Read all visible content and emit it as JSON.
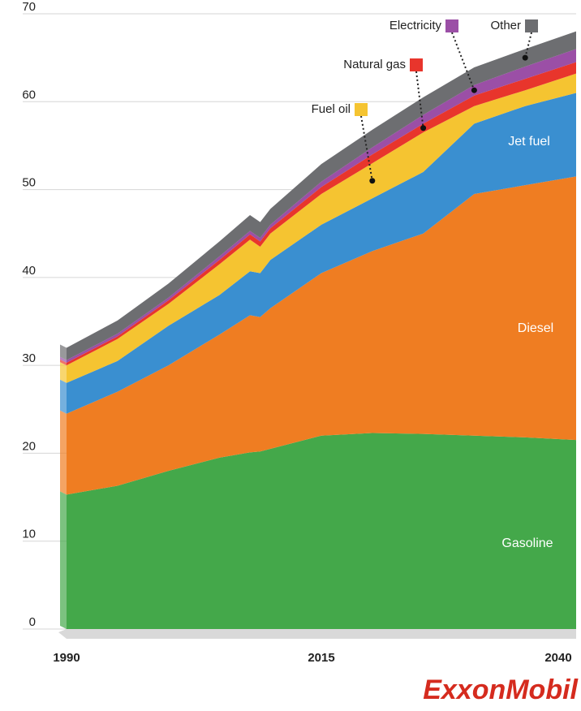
{
  "chart_data": {
    "type": "stacked_area",
    "x": [
      1990,
      1995,
      2000,
      2005,
      2008,
      2009,
      2010,
      2015,
      2020,
      2025,
      2030,
      2035,
      2040
    ],
    "xlim": [
      1990,
      2040
    ],
    "xticks": [
      1990,
      2015,
      2040
    ],
    "ylim": [
      0,
      70
    ],
    "yticks": [
      0,
      10,
      20,
      30,
      40,
      50,
      60,
      70
    ],
    "grid": true,
    "series": [
      {
        "name": "Gasoline",
        "color": "#44a84a",
        "values": [
          15.3,
          16.3,
          18.0,
          19.5,
          20.1,
          20.2,
          20.5,
          22.0,
          22.3,
          22.2,
          22.0,
          21.8,
          21.5
        ]
      },
      {
        "name": "Diesel",
        "color": "#ef7d22",
        "values": [
          9.2,
          10.7,
          12.0,
          14.0,
          15.6,
          15.3,
          16.0,
          18.5,
          20.7,
          22.8,
          27.5,
          28.7,
          30.0
        ]
      },
      {
        "name": "Jet fuel",
        "color": "#3a8fd0",
        "values": [
          3.5,
          3.5,
          4.5,
          4.5,
          5.0,
          5.0,
          5.5,
          5.5,
          6.0,
          7.0,
          8.0,
          9.0,
          9.5
        ]
      },
      {
        "name": "Fuel oil",
        "color": "#f5c431",
        "values": [
          2.0,
          2.5,
          2.5,
          3.5,
          3.6,
          3.0,
          3.0,
          3.5,
          4.0,
          4.5,
          2.0,
          1.8,
          2.2
        ]
      },
      {
        "name": "Natural gas",
        "color": "#e8352c",
        "values": [
          0.3,
          0.3,
          0.4,
          0.5,
          0.6,
          0.6,
          0.6,
          0.8,
          1.0,
          1.0,
          1.2,
          1.3,
          1.3
        ]
      },
      {
        "name": "Electricity",
        "color": "#9b4fa6",
        "values": [
          0.3,
          0.3,
          0.3,
          0.4,
          0.4,
          0.4,
          0.4,
          0.6,
          0.8,
          1.0,
          1.2,
          1.4,
          1.5
        ]
      },
      {
        "name": "Other",
        "color": "#6d6e71",
        "values": [
          1.4,
          1.5,
          1.6,
          1.7,
          1.8,
          1.8,
          1.8,
          2.0,
          2.0,
          2.0,
          2.0,
          2.0,
          2.0
        ]
      }
    ]
  },
  "logo": "ExxonMobil"
}
